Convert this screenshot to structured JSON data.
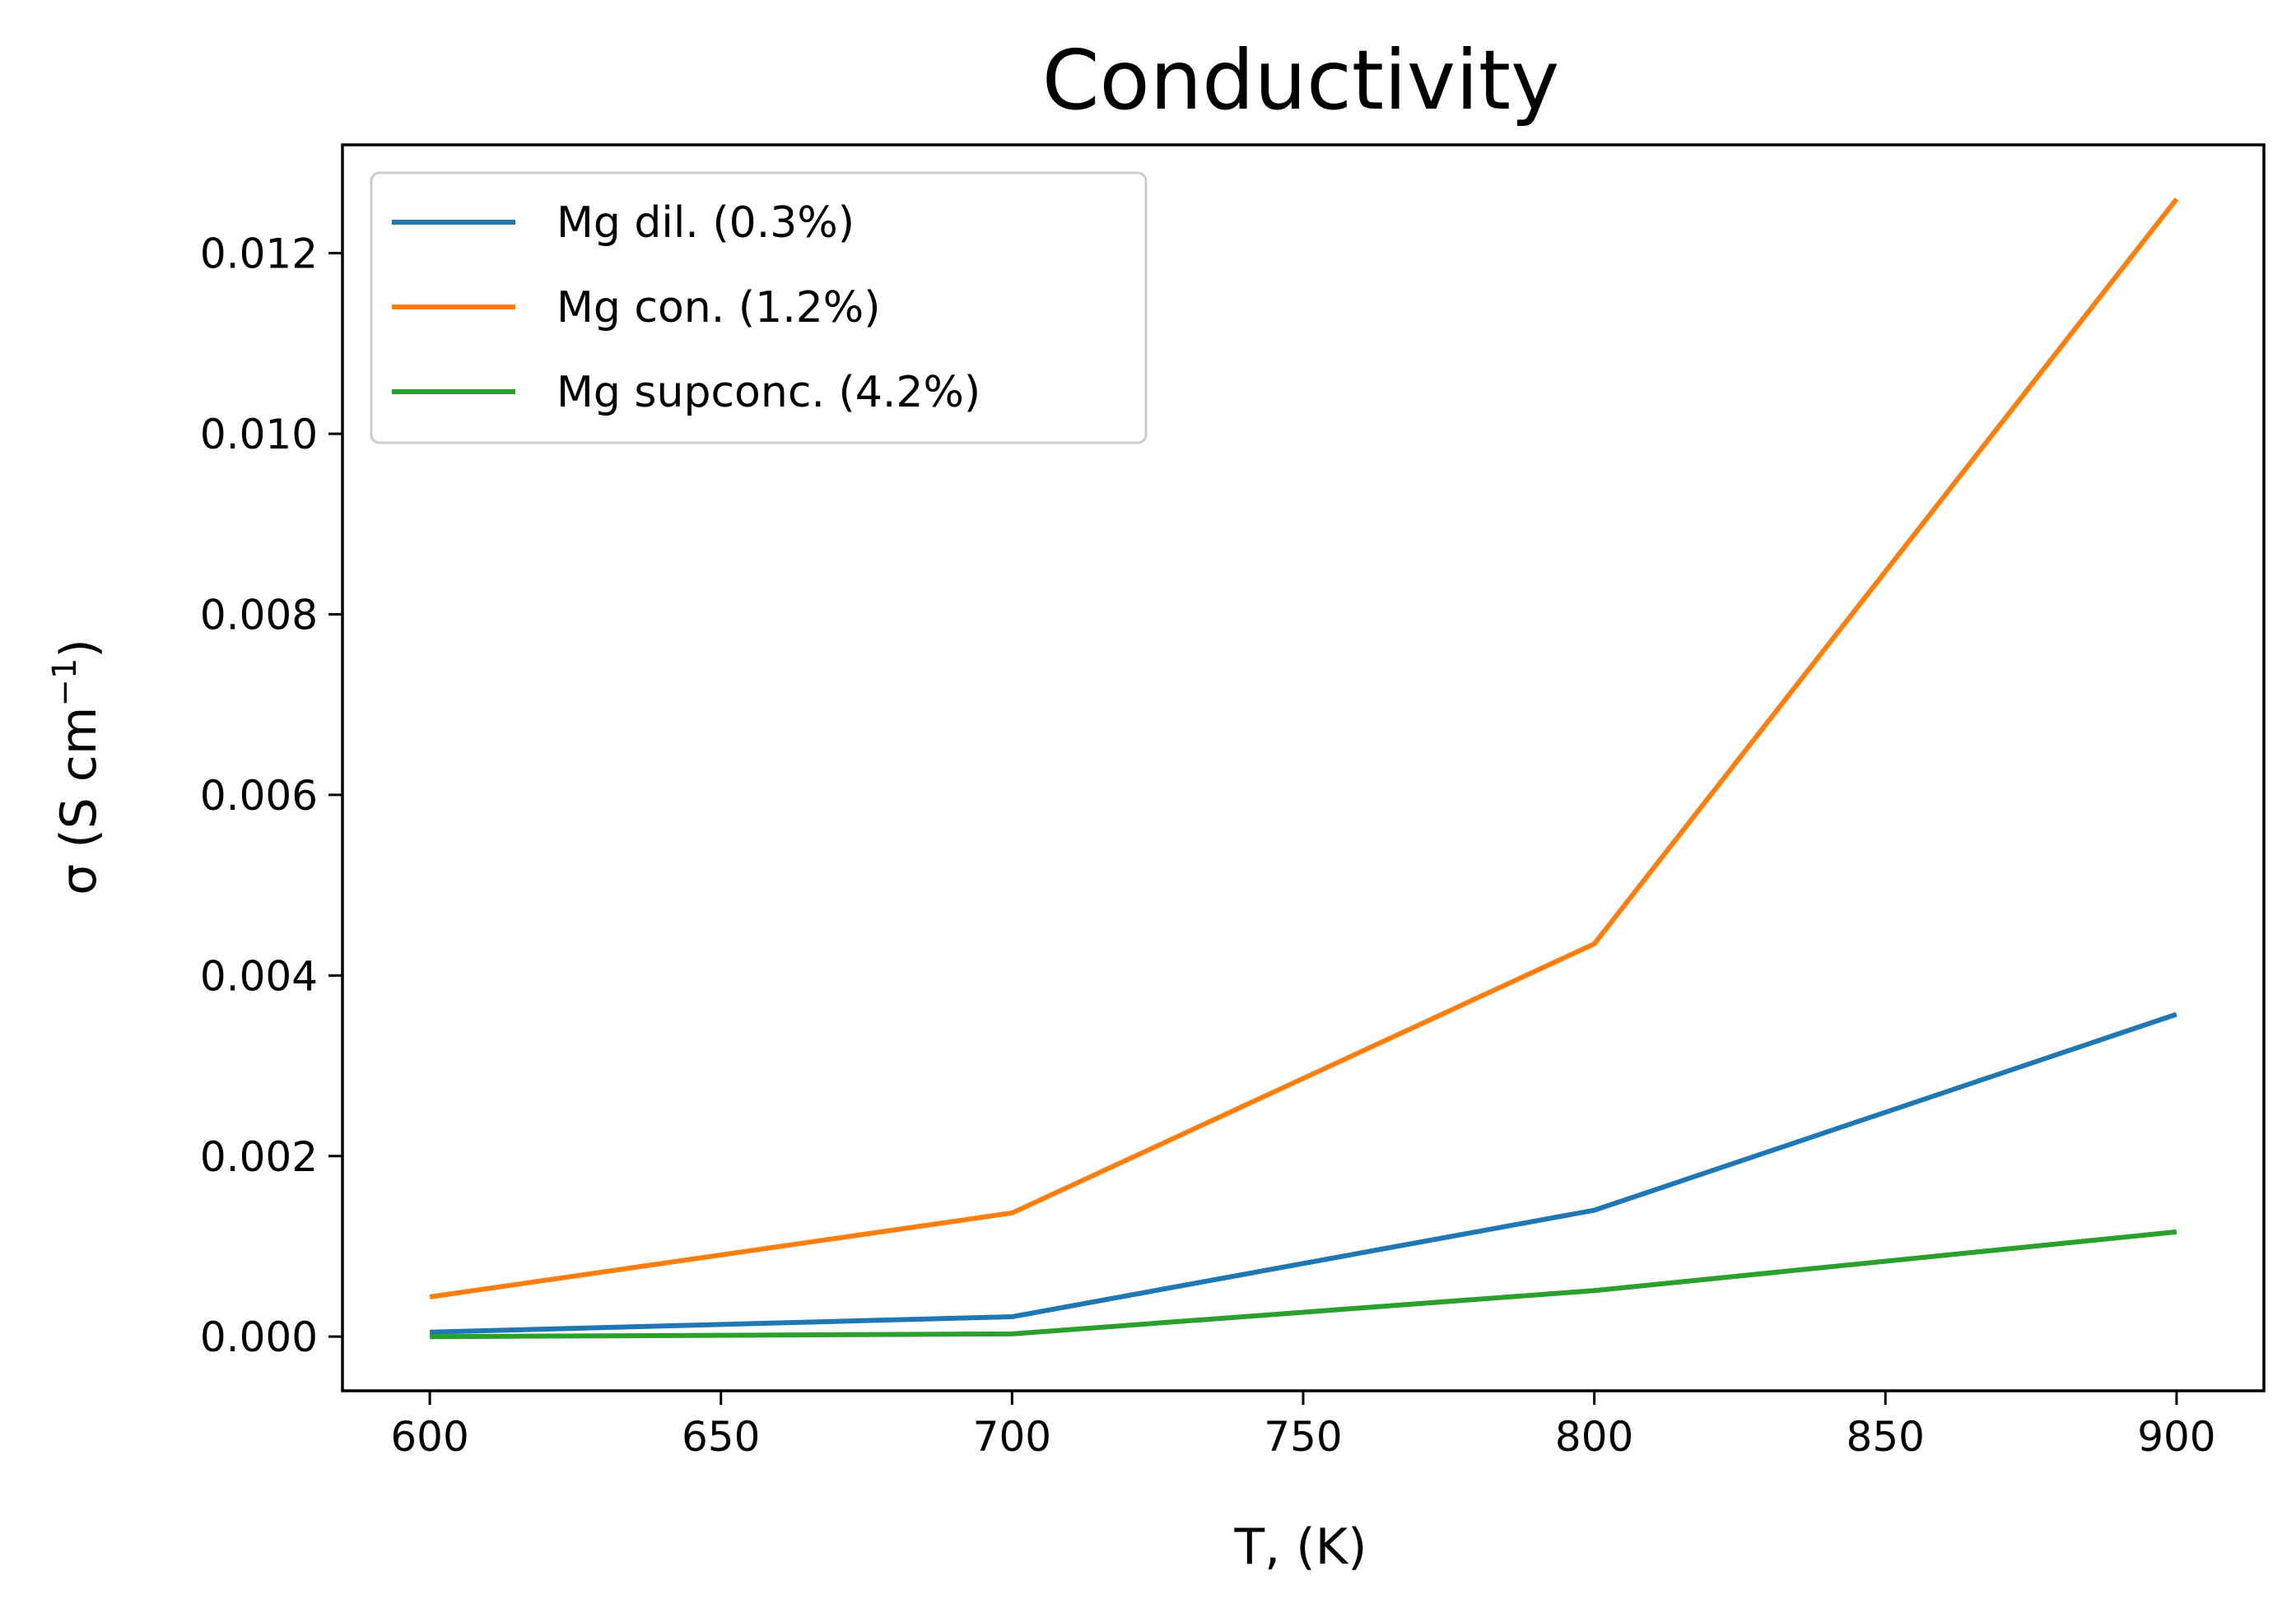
{
  "chart_data": {
    "type": "line",
    "title": "Conductivity",
    "xlabel": "T, (K)",
    "ylabel_main": "σ (S cm",
    "ylabel_sup": "−1",
    "ylabel_close": ")",
    "x": [
      600,
      700,
      800,
      900
    ],
    "xlim": [
      585,
      915
    ],
    "ylim": [
      -0.0006,
      0.0132
    ],
    "xticks": [
      600,
      650,
      700,
      750,
      800,
      850,
      900
    ],
    "xtick_labels": [
      "600",
      "650",
      "700",
      "750",
      "800",
      "850",
      "900"
    ],
    "yticks": [
      0.0,
      0.002,
      0.004,
      0.006,
      0.008,
      0.01,
      0.012
    ],
    "ytick_labels": [
      "0.000",
      "0.002",
      "0.004",
      "0.006",
      "0.008",
      "0.010",
      "0.012"
    ],
    "grid": false,
    "legend_position": "upper-left",
    "series": [
      {
        "name": "Mg dil. (0.3%)",
        "color": "#1f77b4",
        "values": [
          5e-05,
          0.00022,
          0.0014,
          0.00357
        ]
      },
      {
        "name": "Mg con. (1.2%)",
        "color": "#ff7f0e",
        "values": [
          0.00044,
          0.00137,
          0.00435,
          0.0126
        ]
      },
      {
        "name": "Mg supconc. (4.2%)",
        "color": "#2ca02c",
        "values": [
          0.0,
          3e-05,
          0.00051,
          0.00116
        ]
      }
    ]
  }
}
